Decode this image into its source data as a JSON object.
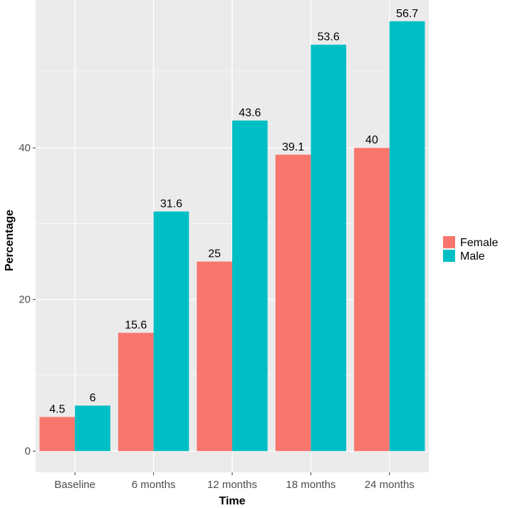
{
  "chart_data": {
    "type": "bar",
    "categories": [
      "Baseline",
      "6 months",
      "12 months",
      "18 months",
      "24 months"
    ],
    "series": [
      {
        "name": "Female",
        "values": [
          4.5,
          15.6,
          25,
          39.1,
          40
        ],
        "labels": [
          "4.5",
          "15.6",
          "25",
          "39.1",
          "40"
        ],
        "color": "#F8766D"
      },
      {
        "name": "Male",
        "values": [
          6,
          31.6,
          43.6,
          53.6,
          56.7
        ],
        "labels": [
          "6",
          "31.6",
          "43.6",
          "53.6",
          "56.7"
        ],
        "color": "#00BFC4"
      }
    ],
    "xlabel": "Time",
    "ylabel": "Percentage",
    "yticks": [
      0,
      20,
      40
    ],
    "ylim": [
      -2.8,
      59.5
    ],
    "grid": true,
    "panel_background": "#EBEBEB",
    "legend_position": "right"
  }
}
